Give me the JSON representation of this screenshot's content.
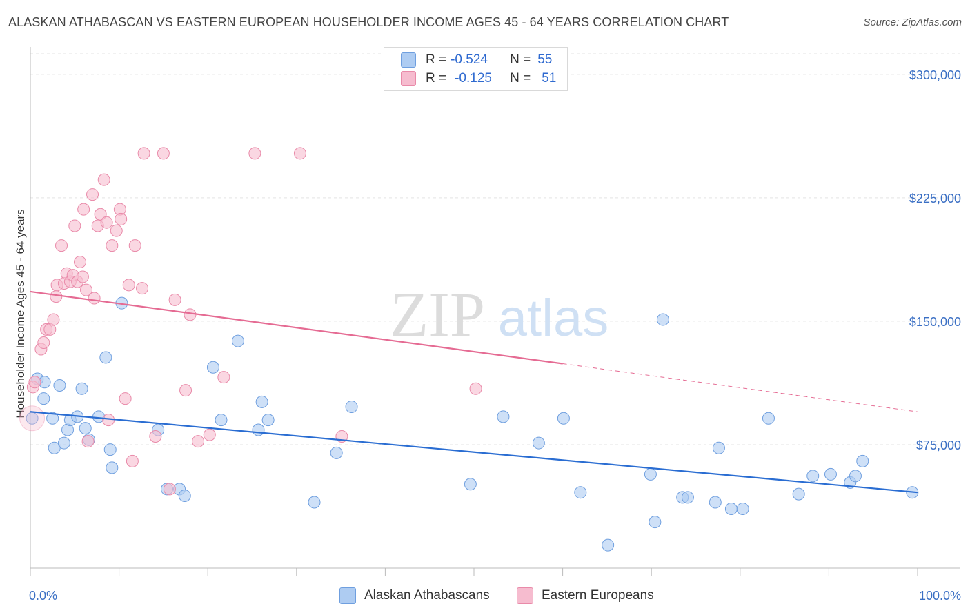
{
  "title": "ALASKAN ATHABASCAN VS EASTERN EUROPEAN HOUSEHOLDER INCOME AGES 45 - 64 YEARS CORRELATION CHART",
  "source": "Source: ZipAtlas.com",
  "watermark": {
    "zip": "ZIP",
    "atlas": "atlas"
  },
  "colors": {
    "blue_fill": "#aeccf2",
    "blue_stroke": "#6f9fdf",
    "blue_line": "#2a6dd2",
    "pink_fill": "#f6bccf",
    "pink_stroke": "#e98aa9",
    "pink_line": "#e56b93"
  },
  "legend": {
    "rows": [
      {
        "r_label": "R =",
        "r_value": "-0.524",
        "n_label": "N =",
        "n_value": "55",
        "color": "#aeccf2"
      },
      {
        "r_label": "R =",
        "r_value": "-0.125",
        "n_label": "N =",
        "n_value": "51",
        "color": "#f6bccf"
      }
    ]
  },
  "bottom_legend": [
    "Alaskan Athabascans",
    "Eastern Europeans"
  ],
  "chart_data": {
    "type": "scatter",
    "title": "ALASKAN ATHABASCAN VS EASTERN EUROPEAN HOUSEHOLDER INCOME AGES 45 - 64 YEARS CORRELATION CHART",
    "xlabel": "",
    "ylabel": "Householder Income Ages 45 - 64 years",
    "xlim": [
      0,
      100
    ],
    "ylim": [
      0,
      312500
    ],
    "x_tick_labels": [
      "0.0%",
      "100.0%"
    ],
    "y_ticks": [
      75000,
      150000,
      225000,
      300000
    ],
    "y_tick_labels": [
      "$75,000",
      "$150,000",
      "$225,000",
      "$300,000"
    ],
    "grid": true,
    "legend_position": "top-center",
    "series": [
      {
        "name": "Alaskan Athabascans",
        "r": -0.524,
        "n": 55,
        "trend": {
          "x": [
            0,
            100
          ],
          "y": [
            95000,
            46000
          ],
          "solid_until": 100
        },
        "points": [
          [
            0.2,
            91000
          ],
          [
            0.8,
            115000
          ],
          [
            1.5,
            103000
          ],
          [
            1.6,
            113000
          ],
          [
            2.5,
            91000
          ],
          [
            2.7,
            73000
          ],
          [
            3.3,
            111000
          ],
          [
            3.8,
            76000
          ],
          [
            4.2,
            84000
          ],
          [
            4.5,
            90000
          ],
          [
            5.3,
            92000
          ],
          [
            5.8,
            109000
          ],
          [
            6.2,
            85000
          ],
          [
            6.6,
            78000
          ],
          [
            7.7,
            92000
          ],
          [
            8.5,
            128000
          ],
          [
            9.0,
            72000
          ],
          [
            9.2,
            61000
          ],
          [
            10.3,
            161000
          ],
          [
            14.4,
            84000
          ],
          [
            15.4,
            48000
          ],
          [
            16.8,
            48000
          ],
          [
            17.4,
            44000
          ],
          [
            20.6,
            122000
          ],
          [
            21.5,
            90000
          ],
          [
            23.4,
            138000
          ],
          [
            25.7,
            84000
          ],
          [
            26.1,
            101000
          ],
          [
            26.8,
            90000
          ],
          [
            32.0,
            40000
          ],
          [
            34.5,
            70000
          ],
          [
            36.2,
            98000
          ],
          [
            49.6,
            51000
          ],
          [
            53.3,
            92000
          ],
          [
            57.3,
            76000
          ],
          [
            60.1,
            91000
          ],
          [
            62.0,
            46000
          ],
          [
            65.1,
            14000
          ],
          [
            69.9,
            57000
          ],
          [
            71.3,
            151000
          ],
          [
            70.4,
            28000
          ],
          [
            73.5,
            43000
          ],
          [
            74.1,
            43000
          ],
          [
            77.2,
            40000
          ],
          [
            77.6,
            73000
          ],
          [
            79.0,
            36000
          ],
          [
            80.3,
            36000
          ],
          [
            83.2,
            91000
          ],
          [
            86.6,
            45000
          ],
          [
            88.2,
            56000
          ],
          [
            90.2,
            57000
          ],
          [
            92.4,
            52000
          ],
          [
            93.0,
            56000
          ],
          [
            93.8,
            65000
          ],
          [
            99.4,
            46000
          ]
        ]
      },
      {
        "name": "Eastern Europeans",
        "r": -0.125,
        "n": 51,
        "trend": {
          "x": [
            0,
            100
          ],
          "y": [
            168000,
            95000
          ],
          "solid_until": 60
        },
        "points": [
          [
            0.3,
            110000
          ],
          [
            0.5,
            113000
          ],
          [
            1.2,
            133000
          ],
          [
            1.5,
            137000
          ],
          [
            1.8,
            145000
          ],
          [
            2.2,
            145000
          ],
          [
            2.6,
            151000
          ],
          [
            2.9,
            165000
          ],
          [
            3.0,
            172000
          ],
          [
            3.5,
            196000
          ],
          [
            3.8,
            173000
          ],
          [
            4.1,
            179000
          ],
          [
            4.5,
            174000
          ],
          [
            4.8,
            178000
          ],
          [
            5.0,
            208000
          ],
          [
            5.3,
            174000
          ],
          [
            5.6,
            186000
          ],
          [
            5.9,
            177000
          ],
          [
            6.0,
            218000
          ],
          [
            6.3,
            169000
          ],
          [
            6.5,
            77000
          ],
          [
            7.0,
            227000
          ],
          [
            7.2,
            164000
          ],
          [
            7.6,
            208000
          ],
          [
            7.9,
            215000
          ],
          [
            8.3,
            236000
          ],
          [
            8.6,
            210000
          ],
          [
            8.8,
            90000
          ],
          [
            9.2,
            196000
          ],
          [
            9.7,
            205000
          ],
          [
            10.1,
            218000
          ],
          [
            10.2,
            212000
          ],
          [
            10.7,
            103000
          ],
          [
            11.1,
            172000
          ],
          [
            11.5,
            65000
          ],
          [
            11.8,
            196000
          ],
          [
            12.6,
            170000
          ],
          [
            12.8,
            252000
          ],
          [
            14.1,
            80000
          ],
          [
            15.0,
            252000
          ],
          [
            15.7,
            48000
          ],
          [
            16.3,
            163000
          ],
          [
            17.5,
            108000
          ],
          [
            18.0,
            154000
          ],
          [
            18.9,
            77000
          ],
          [
            20.2,
            81000
          ],
          [
            21.8,
            116000
          ],
          [
            25.3,
            252000
          ],
          [
            30.4,
            252000
          ],
          [
            35.1,
            80000
          ],
          [
            50.2,
            109000
          ]
        ]
      }
    ]
  }
}
